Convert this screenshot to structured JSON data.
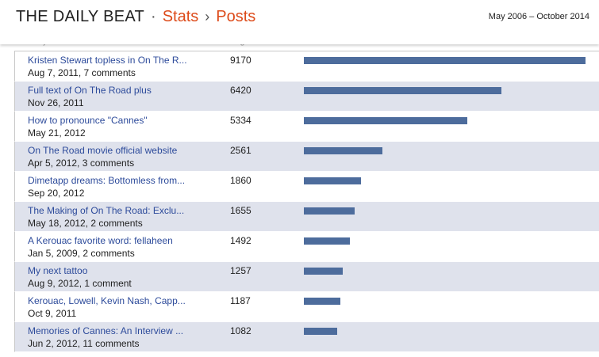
{
  "header": {
    "blog_name": "THE DAILY BEAT",
    "dot": "·",
    "crumb_stats": "Stats",
    "chevron": "›",
    "crumb_posts": "Posts",
    "date_range": "May 2006 – October 2014"
  },
  "columns": {
    "entry": "Entry",
    "pageviews": "Pageviews"
  },
  "posts": [
    {
      "title": "Kristen Stewart topless in On The R...",
      "sub": "Aug 7, 2011, 7 comments",
      "views": "9170",
      "value": 9170
    },
    {
      "title": "Full text of On The Road plus",
      "sub": "Nov 26, 2011",
      "views": "6420",
      "value": 6420
    },
    {
      "title": "How to pronounce \"Cannes\"",
      "sub": "May 21, 2012",
      "views": "5334",
      "value": 5334
    },
    {
      "title": "On The Road movie official website",
      "sub": "Apr 5, 2012, 3 comments",
      "views": "2561",
      "value": 2561
    },
    {
      "title": "Dimetapp dreams: Bottomless from...",
      "sub": "Sep 20, 2012",
      "views": "1860",
      "value": 1860
    },
    {
      "title": "The Making of On The Road: Exclu...",
      "sub": "May 18, 2012, 2 comments",
      "views": "1655",
      "value": 1655
    },
    {
      "title": "A Kerouac favorite word: fellaheen",
      "sub": "Jan 5, 2009, 2 comments",
      "views": "1492",
      "value": 1492
    },
    {
      "title": "My next tattoo",
      "sub": "Aug 9, 2012, 1 comment",
      "views": "1257",
      "value": 1257
    },
    {
      "title": "Kerouac, Lowell, Kevin Nash, Capp...",
      "sub": "Oct 9, 2011",
      "views": "1187",
      "value": 1187
    },
    {
      "title": "Memories of Cannes: An Interview ...",
      "sub": "Jun 2, 2012, 11 comments",
      "views": "1082",
      "value": 1082
    }
  ],
  "colors": {
    "accent": "#dd4b1a",
    "link": "#2d4b9b",
    "bar": "#4d6c9c",
    "row_alt": "#dfe2ec"
  }
}
